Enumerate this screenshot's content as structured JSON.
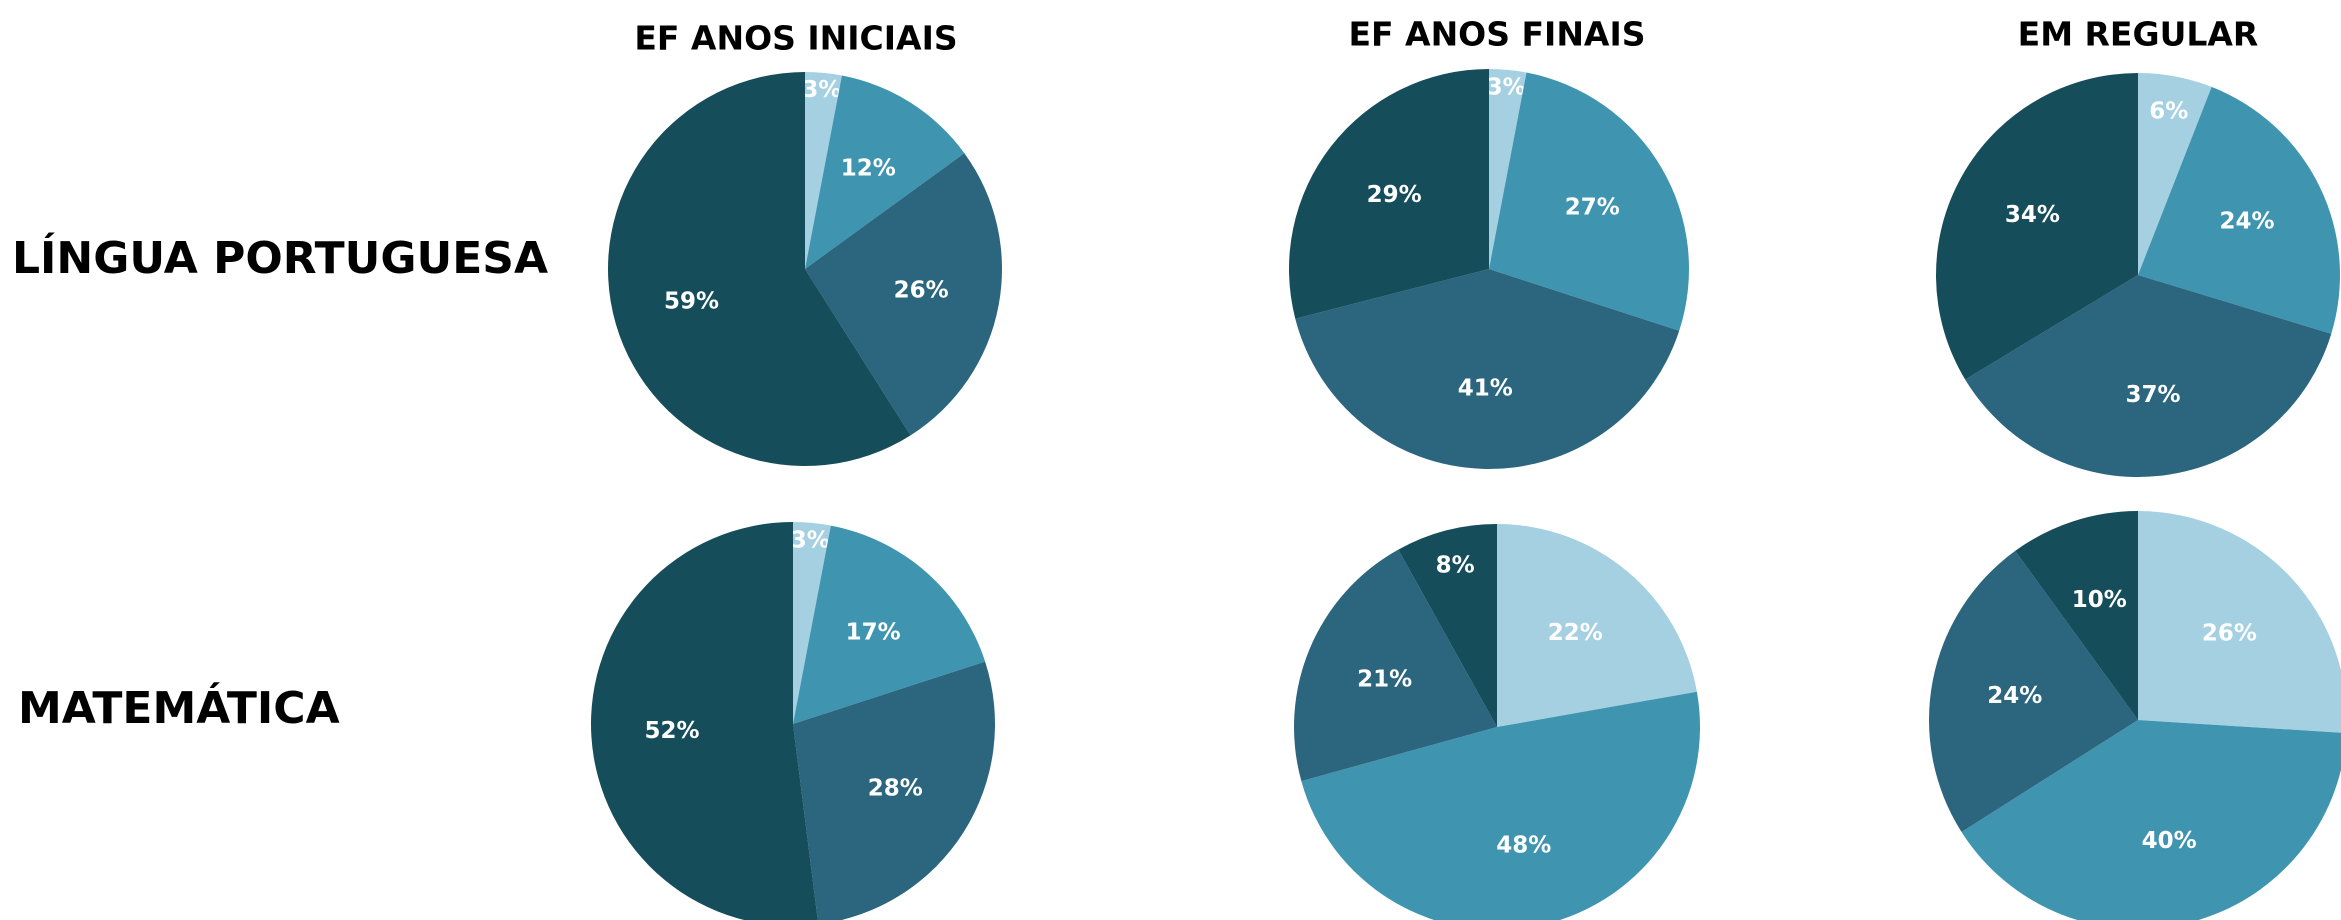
{
  "column_titles": [
    "EF ANOS INICIAIS",
    "EF ANOS FINAIS",
    "EM REGULAR"
  ],
  "row_labels": [
    "LÍNGUA PORTUGUESA",
    "MATEMÁTICA"
  ],
  "chart_data": [
    {
      "type": "pie",
      "values": [
        3,
        12,
        26,
        59
      ],
      "value_labels": [
        "3%",
        "12%",
        "26%",
        "59%"
      ],
      "colors": [
        "#a4d0e1",
        "#3f95b0",
        "#2b657e",
        "#164d5b"
      ]
    },
    {
      "type": "pie",
      "values": [
        3,
        27,
        41,
        29
      ],
      "value_labels": [
        "3%",
        "27%",
        "41%",
        "29%"
      ],
      "colors": [
        "#a4d0e1",
        "#3f95b0",
        "#2b657e",
        "#164d5b"
      ]
    },
    {
      "type": "pie",
      "values": [
        6,
        24,
        37,
        34
      ],
      "value_labels": [
        "6%",
        "24%",
        "37%",
        "34%"
      ],
      "colors": [
        "#a4d0e1",
        "#3f95b0",
        "#2b657e",
        "#164d5b"
      ]
    },
    {
      "type": "pie",
      "values": [
        3,
        17,
        28,
        52
      ],
      "value_labels": [
        "3%",
        "17%",
        "28%",
        "52%"
      ],
      "colors": [
        "#a4d0e1",
        "#3f95b0",
        "#2b657e",
        "#164d5b"
      ]
    },
    {
      "type": "pie",
      "values": [
        22,
        48,
        21,
        8
      ],
      "value_labels": [
        "22%",
        "48%",
        "21%",
        "8%"
      ],
      "colors": [
        "#a4d0e1",
        "#3f95b0",
        "#2b657e",
        "#164d5b"
      ]
    },
    {
      "type": "pie",
      "values": [
        26,
        40,
        24,
        10
      ],
      "value_labels": [
        "26%",
        "40%",
        "24%",
        "10%"
      ],
      "colors": [
        "#a4d0e1",
        "#3f95b0",
        "#2b657e",
        "#164d5b"
      ]
    }
  ]
}
